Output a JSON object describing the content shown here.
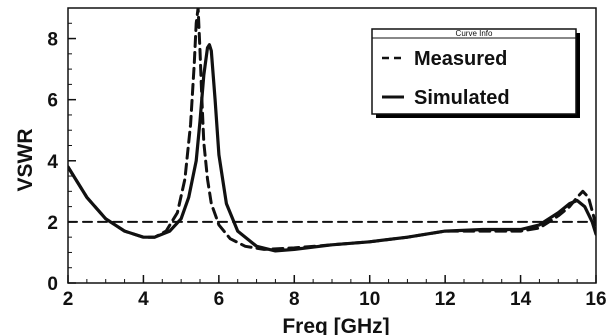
{
  "chart_data": {
    "type": "line",
    "xlabel": "Freq [GHz]",
    "ylabel": "VSWR",
    "xlim": [
      2,
      16
    ],
    "ylim": [
      0,
      9
    ],
    "x_ticks": [
      2,
      4,
      6,
      8,
      10,
      12,
      14,
      16
    ],
    "y_ticks": [
      0,
      2,
      4,
      6,
      8
    ],
    "grid": false,
    "legend": {
      "title": "Curve Info",
      "placement": "top-right"
    },
    "series": [
      {
        "name": "Measured",
        "style": "dashed",
        "x": [
          2.0,
          2.5,
          3.0,
          3.5,
          4.0,
          4.3,
          4.6,
          4.9,
          5.1,
          5.25,
          5.35,
          5.4,
          5.45,
          5.5,
          5.55,
          5.6,
          5.7,
          5.8,
          6.0,
          6.3,
          6.7,
          7.2,
          8.0,
          9.0,
          10.0,
          11.0,
          12.0,
          13.0,
          14.0,
          14.5,
          15.0,
          15.3,
          15.5,
          15.65,
          15.8,
          16.0
        ],
        "y": [
          3.8,
          2.8,
          2.1,
          1.7,
          1.5,
          1.5,
          1.7,
          2.3,
          3.4,
          5.2,
          7.2,
          8.5,
          9.0,
          7.6,
          6.0,
          4.6,
          3.4,
          2.6,
          1.9,
          1.45,
          1.2,
          1.1,
          1.15,
          1.25,
          1.35,
          1.5,
          1.7,
          1.7,
          1.7,
          1.8,
          2.2,
          2.5,
          2.8,
          3.0,
          2.8,
          1.9
        ]
      },
      {
        "name": "Simulated",
        "style": "solid",
        "x": [
          2.0,
          2.5,
          3.0,
          3.5,
          4.0,
          4.3,
          4.7,
          5.0,
          5.2,
          5.4,
          5.5,
          5.6,
          5.7,
          5.75,
          5.8,
          5.9,
          6.0,
          6.2,
          6.5,
          7.0,
          7.5,
          8.0,
          9.0,
          10.0,
          11.0,
          12.0,
          13.0,
          14.0,
          14.5,
          15.0,
          15.3,
          15.5,
          15.7,
          15.9,
          16.0
        ],
        "y": [
          3.8,
          2.8,
          2.1,
          1.7,
          1.5,
          1.5,
          1.7,
          2.1,
          2.8,
          4.0,
          5.3,
          6.8,
          7.7,
          7.8,
          7.6,
          6.0,
          4.2,
          2.6,
          1.7,
          1.2,
          1.05,
          1.1,
          1.25,
          1.35,
          1.5,
          1.7,
          1.75,
          1.75,
          1.9,
          2.3,
          2.6,
          2.7,
          2.5,
          2.0,
          1.6
        ]
      },
      {
        "name": "",
        "style": "dashed-reference",
        "x": [
          2,
          16
        ],
        "y": [
          2,
          2
        ]
      }
    ]
  }
}
